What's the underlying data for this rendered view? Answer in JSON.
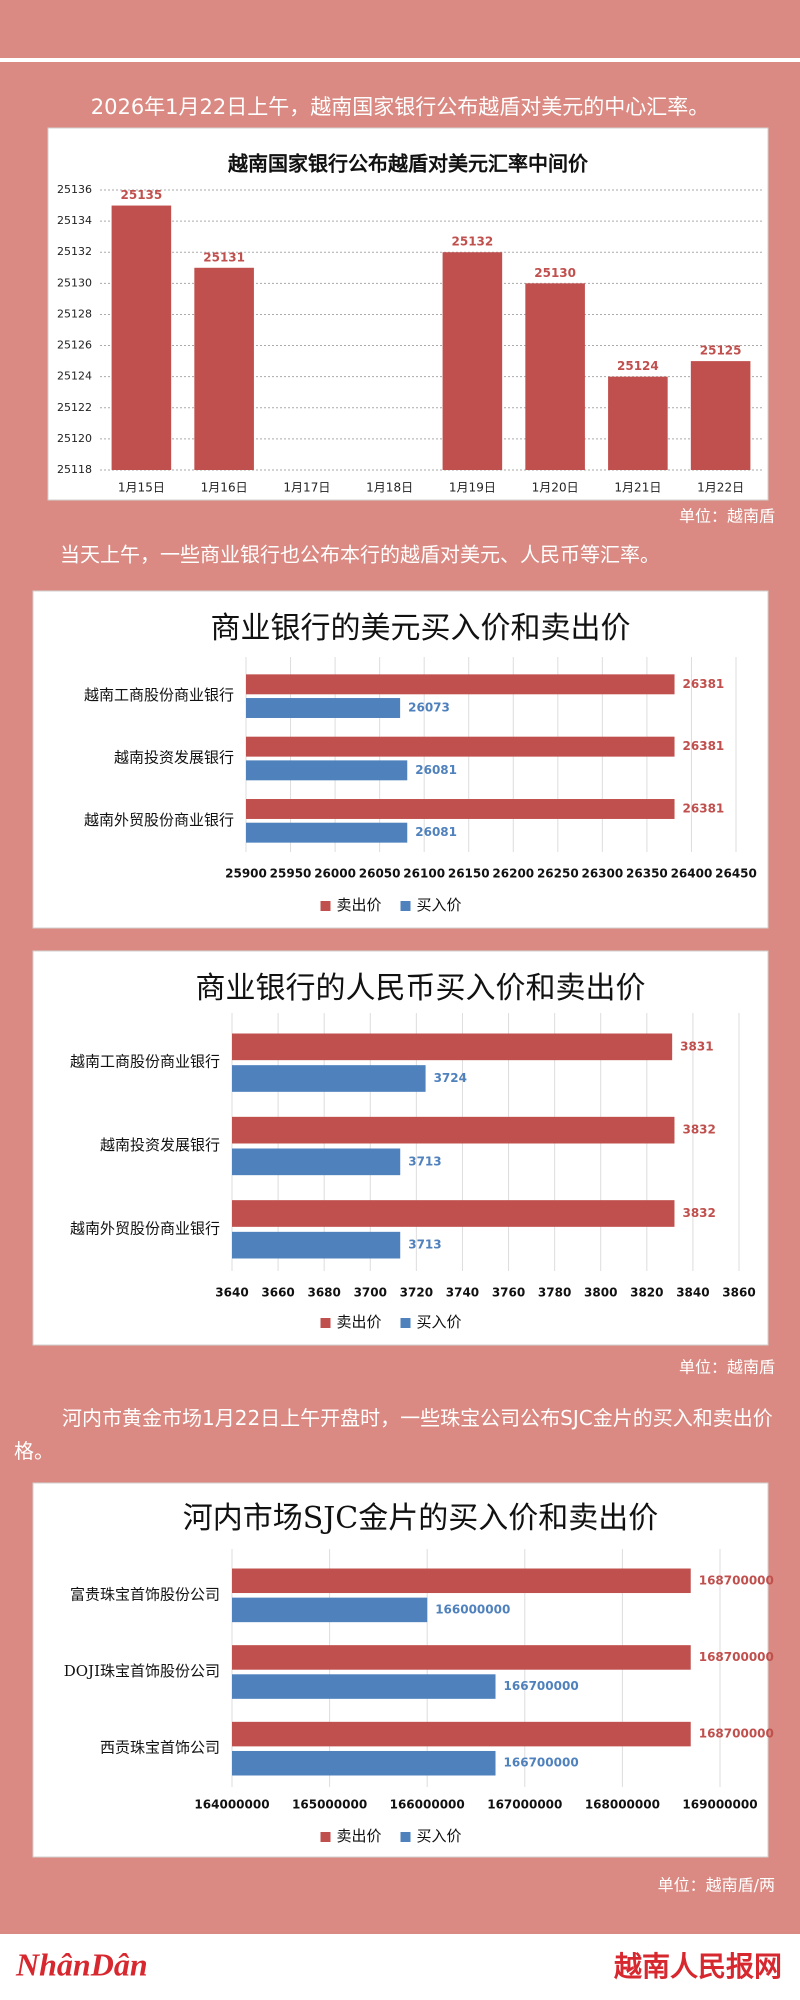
{
  "intro_1": "2026年1月22日上午，越南国家银行公布越盾对美元的中心汇率。",
  "unit_1": "单位：越南盾",
  "intro_2": "当天上午，一些商业银行也公布本行的越盾对美元、人民币等汇率。",
  "unit_2": "单位：越南盾",
  "intro_3": "河内市黄金市场1月22日上午开盘时，一些珠宝公司公布SJC金片的买入和卖出价格。",
  "unit_3": "单位：越南盾/两",
  "logo": "NhânDân",
  "site_name": "越南人民报网",
  "chart_data": [
    {
      "type": "bar",
      "title": "越南国家银行公布越盾对美元汇率中间价",
      "categories": [
        "1月15日",
        "1月16日",
        "1月17日",
        "1月18日",
        "1月19日",
        "1月20日",
        "1月21日",
        "1月22日"
      ],
      "values": [
        25135,
        25131,
        null,
        null,
        25132,
        25130,
        25124,
        25125
      ],
      "color": "#c0504d",
      "ylim": [
        25118,
        25136
      ],
      "yticks": [
        25118,
        25120,
        25122,
        25124,
        25126,
        25128,
        25130,
        25132,
        25134,
        25136
      ],
      "grid": true
    },
    {
      "type": "barh",
      "title": "商业银行的美元买入价和卖出价",
      "categories": [
        "越南工商股份商业银行",
        "越南投资发展银行",
        "越南外贸股份商业银行"
      ],
      "series": [
        {
          "name": "卖出价",
          "color": "#c0504d",
          "values": [
            26381,
            26381,
            26381
          ]
        },
        {
          "name": "买入价",
          "color": "#4f81bd",
          "values": [
            26073,
            26081,
            26081
          ]
        }
      ],
      "xlim": [
        25900,
        26450
      ],
      "xticks": [
        25900,
        25950,
        26000,
        26050,
        26100,
        26150,
        26200,
        26250,
        26300,
        26350,
        26400,
        26450
      ],
      "grid": true,
      "legend": "bottom"
    },
    {
      "type": "barh",
      "title": "商业银行的人民币买入价和卖出价",
      "categories": [
        "越南工商股份商业银行",
        "越南投资发展银行",
        "越南外贸股份商业银行"
      ],
      "series": [
        {
          "name": "卖出价",
          "color": "#c0504d",
          "values": [
            3831,
            3832,
            3832
          ]
        },
        {
          "name": "买入价",
          "color": "#4f81bd",
          "values": [
            3724,
            3713,
            3713
          ]
        }
      ],
      "xlim": [
        3640,
        3860
      ],
      "xticks": [
        3640,
        3660,
        3680,
        3700,
        3720,
        3740,
        3760,
        3780,
        3800,
        3820,
        3840,
        3860
      ],
      "grid": true,
      "legend": "bottom"
    },
    {
      "type": "barh",
      "title": "河内市场SJC金片的买入价和卖出价",
      "categories": [
        "富贵珠宝首饰股份公司",
        "DOJI珠宝首饰股份公司",
        "西贡珠宝首饰公司"
      ],
      "series": [
        {
          "name": "卖出价",
          "color": "#c0504d",
          "values": [
            168700000,
            168700000,
            168700000
          ]
        },
        {
          "name": "买入价",
          "color": "#4f81bd",
          "values": [
            166000000,
            166700000,
            166700000
          ]
        }
      ],
      "xlim": [
        164000000,
        169000000
      ],
      "xticks": [
        164000000,
        165000000,
        166000000,
        167000000,
        168000000,
        169000000
      ],
      "grid": true,
      "legend": "bottom"
    }
  ]
}
